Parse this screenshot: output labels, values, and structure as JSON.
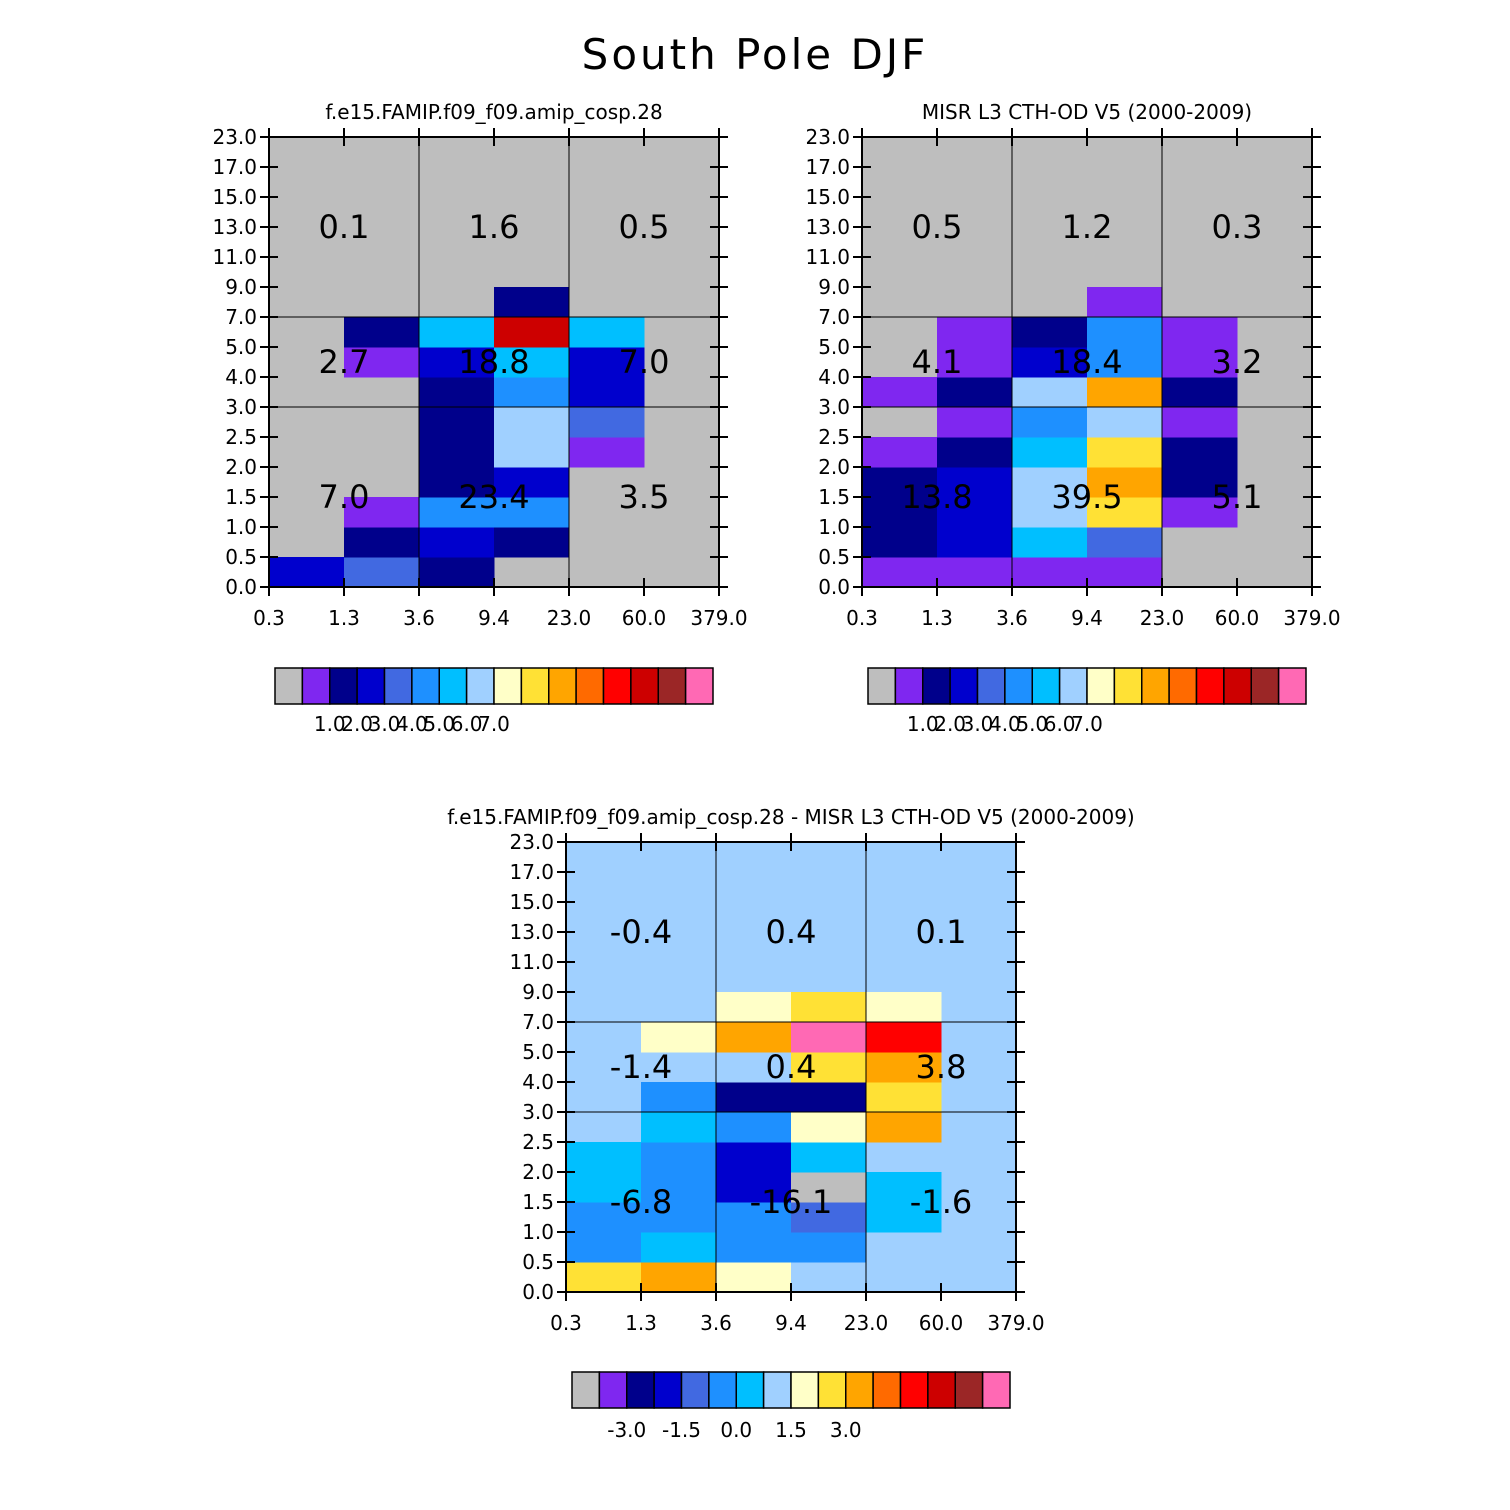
{
  "title": "South Pole DJF",
  "colors": {
    "abs_palette": [
      "#bebebe",
      "#7f27f0",
      "#00008b",
      "#0000cd",
      "#4169e1",
      "#1e90ff",
      "#00bfff",
      "#a0d0ff",
      "#ffffc8",
      "#ffe135",
      "#ffa500",
      "#ff6a00",
      "#ff0000",
      "#cd0000",
      "#9b2626",
      "#ff69b4"
    ],
    "diff_palette": [
      "#bebebe",
      "#7f27f0",
      "#00008b",
      "#0000cd",
      "#4169e1",
      "#1e90ff",
      "#00bfff",
      "#a0d0ff",
      "#ffffc8",
      "#ffe135",
      "#ffa500",
      "#ff6a00",
      "#ff0000",
      "#cd0000",
      "#9b2626",
      "#ff69b4"
    ]
  },
  "chart_data": [
    {
      "id": "model",
      "type": "heatmap",
      "title": "f.e15.FAMIP.f09_f09.amip_cosp.28",
      "x_ticks": [
        "0.3",
        "1.3",
        "3.6",
        "9.4",
        "23.0",
        "60.0",
        "379.0"
      ],
      "y_ticks": [
        "0.0",
        "0.5",
        "1.0",
        "1.5",
        "2.0",
        "2.5",
        "3.0",
        "4.0",
        "5.0",
        "7.0",
        "9.0",
        "11.0",
        "13.0",
        "15.0",
        "17.0",
        "23.0"
      ],
      "cells": [
        [
          0,
          0,
          3
        ],
        [
          1,
          0,
          4
        ],
        [
          2,
          0,
          2
        ],
        [
          1,
          1,
          2
        ],
        [
          2,
          1,
          3
        ],
        [
          3,
          1,
          2
        ],
        [
          1,
          2,
          1
        ],
        [
          2,
          2,
          5
        ],
        [
          3,
          2,
          5
        ],
        [
          2,
          3,
          2
        ],
        [
          3,
          3,
          3
        ],
        [
          2,
          4,
          2
        ],
        [
          3,
          4,
          7
        ],
        [
          4,
          4,
          1
        ],
        [
          2,
          5,
          2
        ],
        [
          3,
          5,
          7
        ],
        [
          4,
          5,
          4
        ],
        [
          2,
          6,
          2
        ],
        [
          3,
          6,
          5
        ],
        [
          4,
          6,
          3
        ],
        [
          1,
          7,
          1
        ],
        [
          2,
          7,
          3
        ],
        [
          3,
          7,
          6
        ],
        [
          4,
          7,
          3
        ],
        [
          1,
          8,
          2
        ],
        [
          2,
          8,
          6
        ],
        [
          3,
          8,
          13
        ],
        [
          4,
          8,
          6
        ],
        [
          3,
          9,
          2
        ]
      ],
      "region_values": [
        [
          "7.0",
          "23.4",
          "3.5"
        ],
        [
          "2.7",
          "18.8",
          "7.0"
        ],
        [
          "0.1",
          "1.6",
          "0.5"
        ]
      ],
      "colorbar": {
        "palette": "abs_palette",
        "labels": [
          "1.0",
          "2.0",
          "3.0",
          "4.0",
          "5.0",
          "6.0",
          "7.0"
        ]
      }
    },
    {
      "id": "obs",
      "type": "heatmap",
      "title": "MISR L3 CTH-OD V5 (2000-2009)",
      "x_ticks": [
        "0.3",
        "1.3",
        "3.6",
        "9.4",
        "23.0",
        "60.0",
        "379.0"
      ],
      "y_ticks": [
        "0.0",
        "0.5",
        "1.0",
        "1.5",
        "2.0",
        "2.5",
        "3.0",
        "4.0",
        "5.0",
        "7.0",
        "9.0",
        "11.0",
        "13.0",
        "15.0",
        "17.0",
        "23.0"
      ],
      "cells": [
        [
          0,
          0,
          1
        ],
        [
          1,
          0,
          1
        ],
        [
          2,
          0,
          1
        ],
        [
          3,
          0,
          1
        ],
        [
          0,
          1,
          2
        ],
        [
          1,
          1,
          3
        ],
        [
          2,
          1,
          6
        ],
        [
          3,
          1,
          4
        ],
        [
          0,
          2,
          2
        ],
        [
          1,
          2,
          3
        ],
        [
          2,
          2,
          7
        ],
        [
          3,
          2,
          9
        ],
        [
          4,
          2,
          1
        ],
        [
          0,
          3,
          2
        ],
        [
          1,
          3,
          3
        ],
        [
          2,
          3,
          7
        ],
        [
          3,
          3,
          10
        ],
        [
          4,
          3,
          2
        ],
        [
          0,
          4,
          1
        ],
        [
          1,
          4,
          2
        ],
        [
          2,
          4,
          6
        ],
        [
          3,
          4,
          9
        ],
        [
          4,
          4,
          2
        ],
        [
          1,
          5,
          1
        ],
        [
          2,
          5,
          5
        ],
        [
          3,
          5,
          7
        ],
        [
          4,
          5,
          1
        ],
        [
          0,
          6,
          1
        ],
        [
          1,
          6,
          2
        ],
        [
          2,
          6,
          7
        ],
        [
          3,
          6,
          10
        ],
        [
          4,
          6,
          2
        ],
        [
          1,
          7,
          1
        ],
        [
          2,
          7,
          3
        ],
        [
          3,
          7,
          5
        ],
        [
          4,
          7,
          1
        ],
        [
          1,
          8,
          1
        ],
        [
          2,
          8,
          2
        ],
        [
          3,
          8,
          5
        ],
        [
          4,
          8,
          1
        ],
        [
          3,
          9,
          1
        ]
      ],
      "region_values": [
        [
          "13.8",
          "39.5",
          "5.1"
        ],
        [
          "4.1",
          "18.4",
          "3.2"
        ],
        [
          "0.5",
          "1.2",
          "0.3"
        ]
      ],
      "colorbar": {
        "palette": "abs_palette",
        "labels": [
          "1.0",
          "2.0",
          "3.0",
          "4.0",
          "5.0",
          "6.0",
          "7.0"
        ]
      }
    },
    {
      "id": "diff",
      "type": "heatmap",
      "title": "f.e15.FAMIP.f09_f09.amip_cosp.28 - MISR L3 CTH-OD V5 (2000-2009)",
      "x_ticks": [
        "0.3",
        "1.3",
        "3.6",
        "9.4",
        "23.0",
        "60.0",
        "379.0"
      ],
      "y_ticks": [
        "0.0",
        "0.5",
        "1.0",
        "1.5",
        "2.0",
        "2.5",
        "3.0",
        "4.0",
        "5.0",
        "7.0",
        "9.0",
        "11.0",
        "13.0",
        "15.0",
        "17.0",
        "23.0"
      ],
      "background": 7,
      "cells": [
        [
          0,
          0,
          9
        ],
        [
          1,
          0,
          10
        ],
        [
          2,
          0,
          8
        ],
        [
          3,
          0,
          7
        ],
        [
          0,
          1,
          5
        ],
        [
          1,
          1,
          6
        ],
        [
          2,
          1,
          5
        ],
        [
          3,
          1,
          5
        ],
        [
          0,
          2,
          5
        ],
        [
          1,
          2,
          5
        ],
        [
          2,
          2,
          5
        ],
        [
          3,
          2,
          4
        ],
        [
          4,
          2,
          6
        ],
        [
          0,
          3,
          6
        ],
        [
          1,
          3,
          5
        ],
        [
          2,
          3,
          3
        ],
        [
          3,
          3,
          0
        ],
        [
          4,
          3,
          6
        ],
        [
          0,
          4,
          6
        ],
        [
          1,
          4,
          5
        ],
        [
          2,
          4,
          3
        ],
        [
          3,
          4,
          6
        ],
        [
          1,
          5,
          6
        ],
        [
          2,
          5,
          5
        ],
        [
          3,
          5,
          8
        ],
        [
          4,
          5,
          10
        ],
        [
          1,
          6,
          5
        ],
        [
          2,
          6,
          2
        ],
        [
          3,
          6,
          2
        ],
        [
          4,
          6,
          9
        ],
        [
          2,
          7,
          7
        ],
        [
          3,
          7,
          9
        ],
        [
          4,
          7,
          10
        ],
        [
          1,
          8,
          8
        ],
        [
          2,
          8,
          10
        ],
        [
          3,
          8,
          15
        ],
        [
          4,
          8,
          12
        ],
        [
          2,
          9,
          8
        ],
        [
          3,
          9,
          9
        ],
        [
          4,
          9,
          8
        ]
      ],
      "region_values": [
        [
          "-6.8",
          "-16.1",
          "-1.6"
        ],
        [
          "-1.4",
          "0.4",
          "3.8"
        ],
        [
          "-0.4",
          "0.4",
          "0.1"
        ]
      ],
      "colorbar": {
        "palette": "diff_palette",
        "labels": [
          "-3.0",
          "-1.5",
          "0.0",
          "1.5",
          "3.0"
        ]
      }
    }
  ]
}
